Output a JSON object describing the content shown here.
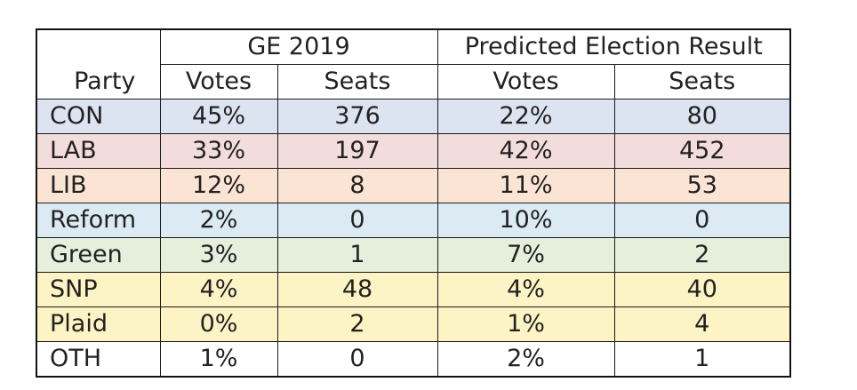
{
  "table": {
    "group_headers": {
      "ge2019": "GE 2019",
      "predicted": "Predicted Election Result"
    },
    "columns": {
      "party": "Party",
      "ge2019_votes": "Votes",
      "ge2019_seats": "Seats",
      "pred_votes": "Votes",
      "pred_seats": "Seats"
    },
    "rows": [
      {
        "party": "CON",
        "v19": "45%",
        "s19": "376",
        "vp": "22%",
        "sp": "80",
        "color": "#dde4f1"
      },
      {
        "party": "LAB",
        "v19": "33%",
        "s19": "197",
        "vp": "42%",
        "sp": "452",
        "color": "#f3dcdc"
      },
      {
        "party": "LIB",
        "v19": "12%",
        "s19": "8",
        "vp": "11%",
        "sp": "53",
        "color": "#fce4d4"
      },
      {
        "party": "Reform",
        "v19": "2%",
        "s19": "0",
        "vp": "10%",
        "sp": "0",
        "color": "#dcebf3"
      },
      {
        "party": "Green",
        "v19": "3%",
        "s19": "1",
        "vp": "7%",
        "sp": "2",
        "color": "#e5efdc"
      },
      {
        "party": "SNP",
        "v19": "4%",
        "s19": "48",
        "vp": "4%",
        "sp": "40",
        "color": "#fcf4c4"
      },
      {
        "party": "Plaid",
        "v19": "0%",
        "s19": "2",
        "vp": "1%",
        "sp": "4",
        "color": "#fcf4c4"
      },
      {
        "party": "OTH",
        "v19": "1%",
        "s19": "0",
        "vp": "2%",
        "sp": "1",
        "color": "#ffffff"
      }
    ]
  }
}
